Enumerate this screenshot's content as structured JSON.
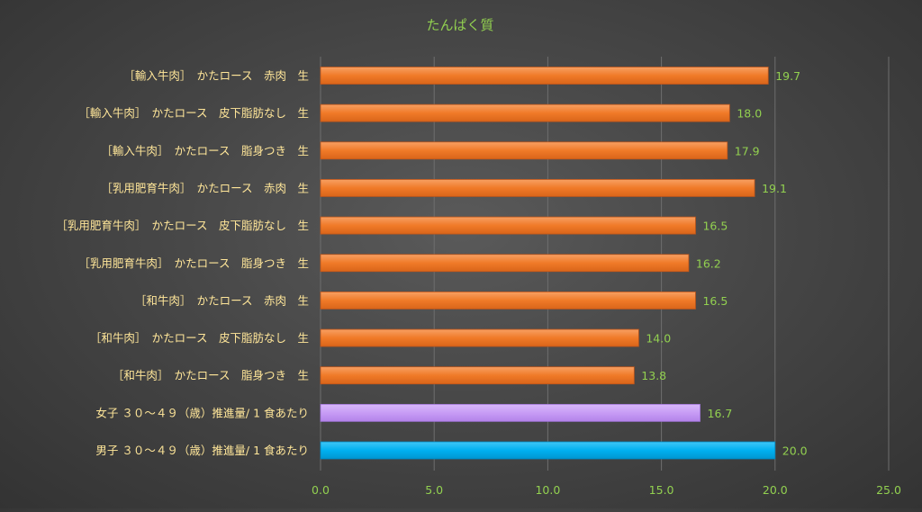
{
  "chart_data": {
    "type": "bar",
    "orientation": "horizontal",
    "title": "たんぱく質",
    "xlabel": "",
    "ylabel": "",
    "xlim": [
      0,
      25
    ],
    "ticks": [
      "0.0",
      "5.0",
      "10.0",
      "15.0",
      "20.0",
      "25.0"
    ],
    "tick_values": [
      0,
      5,
      10,
      15,
      20,
      25
    ],
    "grid": true,
    "legend": "none",
    "colors": {
      "title": "#92d050",
      "category_label": "#ffe699",
      "value_label": "#92d050",
      "tick_label": "#92d050",
      "grid": "#6e6e6e",
      "beef": "#f07a28",
      "female": "#c79cf5",
      "male": "#00b0f0"
    },
    "categories": [
      "［輸入牛肉］　かたロース　赤肉　生",
      "［輸入牛肉］　かたロース　皮下脂肪なし　生",
      "［輸入牛肉］　かたロース　脂身つき　生",
      "［乳用肥育牛肉］　かたロース　赤肉　生",
      "［乳用肥育牛肉］　かたロース　皮下脂肪なし　生",
      "［乳用肥育牛肉］　かたロース　脂身つき　生",
      "［和牛肉］　かたロース　赤肉　生",
      "［和牛肉］　かたロース　皮下脂肪なし　生",
      "［和牛肉］　かたロース　脂身つき　生",
      "女子 ３０～４９（歳）推進量/ 1 食あたり",
      "男子 ３０～４９（歳）推進量/ 1 食あたり"
    ],
    "values": [
      19.7,
      18.0,
      17.9,
      19.1,
      16.5,
      16.2,
      16.5,
      14.0,
      13.8,
      16.7,
      20.0
    ],
    "value_labels": [
      "19.7",
      "18.0",
      "17.9",
      "19.1",
      "16.5",
      "16.2",
      "16.5",
      "14.0",
      "13.8",
      "16.7",
      "20.0"
    ],
    "bar_colors": [
      "beef",
      "beef",
      "beef",
      "beef",
      "beef",
      "beef",
      "beef",
      "beef",
      "beef",
      "female",
      "male"
    ]
  }
}
